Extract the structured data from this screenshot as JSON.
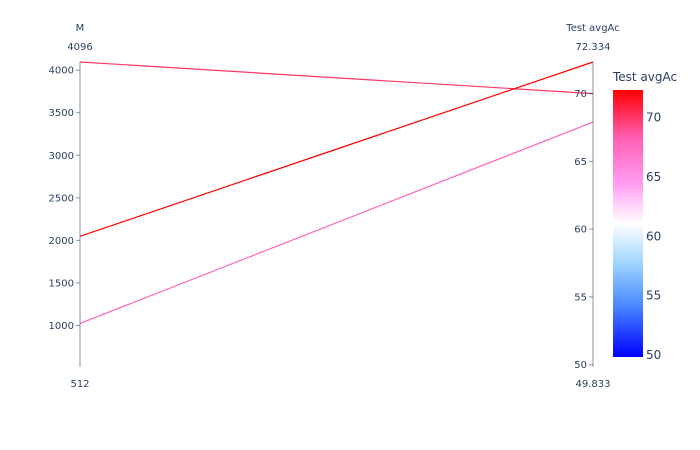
{
  "chart_data": {
    "type": "parallel_coordinates",
    "dimensions": [
      {
        "label": "M",
        "range": [
          512,
          4096
        ],
        "range_labels": {
          "max": "4096",
          "min": "512"
        },
        "ticks": [
          1000,
          1500,
          2000,
          2500,
          3000,
          3500,
          4000
        ]
      },
      {
        "label": "Test avgAc",
        "range": [
          49.833,
          72.334
        ],
        "range_labels": {
          "max": "72.334",
          "min": "49.833"
        },
        "ticks": [
          50,
          55,
          60,
          65,
          70
        ]
      }
    ],
    "lines": [
      {
        "values": [
          4096,
          70.0
        ]
      },
      {
        "values": [
          2048,
          72.334
        ]
      },
      {
        "values": [
          1024,
          67.9
        ]
      }
    ],
    "colorbar": {
      "title": "Test avgAc",
      "range": [
        49.833,
        72.334
      ],
      "ticks": [
        50,
        55,
        60,
        65,
        70
      ],
      "colorscale": [
        "#0000ff",
        "#6495ed",
        "#87cefa",
        "#ffffff",
        "#ff8cff",
        "#ff69b4",
        "#ff0000"
      ]
    }
  }
}
